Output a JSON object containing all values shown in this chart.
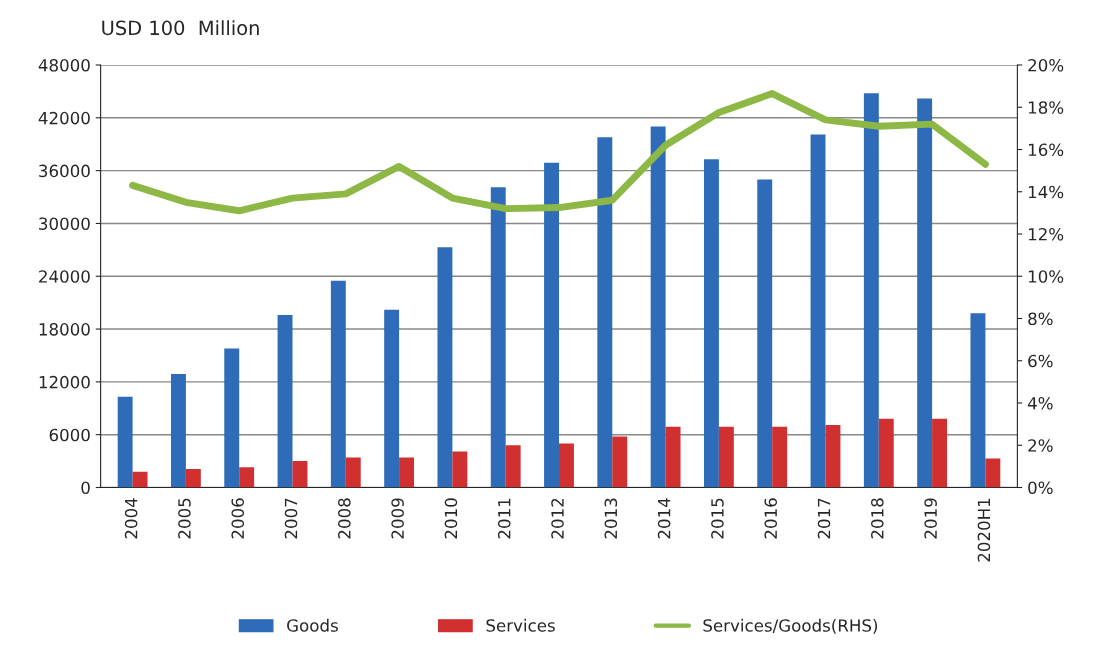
{
  "chart_data": {
    "type": "bar",
    "title": "USD 100  Million",
    "categories": [
      "2004",
      "2005",
      "2006",
      "2007",
      "2008",
      "2009",
      "2010",
      "2011",
      "2012",
      "2013",
      "2014",
      "2015",
      "2016",
      "2017",
      "2018",
      "2019",
      "2020H1"
    ],
    "series": [
      {
        "name": "Goods",
        "color": "#2e6bb8",
        "values": [
          10300,
          12900,
          15800,
          19600,
          23500,
          20200,
          27300,
          34100,
          36900,
          39800,
          41000,
          37300,
          35000,
          40100,
          44800,
          44200,
          19800
        ]
      },
      {
        "name": "Services",
        "color": "#d03030",
        "values": [
          1800,
          2100,
          2300,
          3000,
          3400,
          3400,
          4100,
          4800,
          5000,
          5800,
          6900,
          6900,
          6900,
          7100,
          7800,
          7800,
          3300
        ]
      },
      {
        "name": "Services/Goods(RHS)",
        "type": "line",
        "axis": "y2",
        "color": "#8db845",
        "values": [
          14.3,
          13.5,
          13.1,
          13.7,
          13.9,
          15.2,
          13.7,
          13.2,
          13.25,
          13.6,
          16.2,
          17.75,
          18.65,
          17.4,
          17.1,
          17.2,
          15.3
        ]
      }
    ],
    "ylim": [
      0,
      48000
    ],
    "yticks": [
      0,
      6000,
      12000,
      18000,
      24000,
      30000,
      36000,
      42000,
      48000
    ],
    "y2lim": [
      0,
      20
    ],
    "y2ticks": [
      {
        "value": 0,
        "label": "0%"
      },
      {
        "value": 2,
        "label": "2%"
      },
      {
        "value": 4,
        "label": "4%"
      },
      {
        "value": 6,
        "label": "6%"
      },
      {
        "value": 8,
        "label": "8%"
      },
      {
        "value": 10,
        "label": "10%"
      },
      {
        "value": 12,
        "label": "12%"
      },
      {
        "value": 14,
        "label": "14%"
      },
      {
        "value": 16,
        "label": "16%"
      },
      {
        "value": 18,
        "label": "18%"
      },
      {
        "value": 20,
        "label": "20%"
      }
    ],
    "grid": "y",
    "legend": "bottom"
  }
}
